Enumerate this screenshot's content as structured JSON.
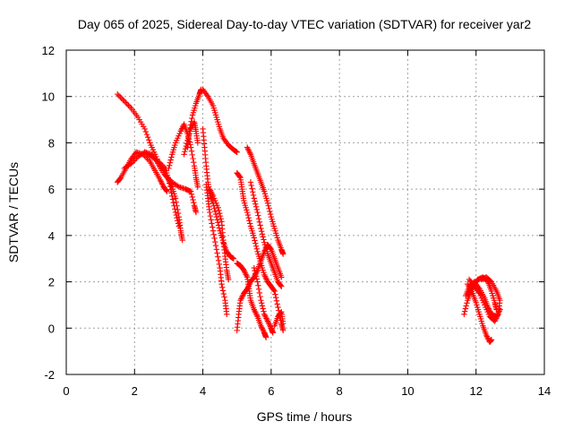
{
  "chart_data": {
    "type": "scatter",
    "title": "Day 065 of 2025, Sidereal Day-to-day VTEC variation (SDTVAR) for receiver yar2",
    "xlabel": "GPS time / hours",
    "ylabel": "SDTVAR / TECUs",
    "xlim": [
      0,
      14
    ],
    "ylim": [
      -2,
      12
    ],
    "xticks": [
      0,
      2,
      4,
      6,
      8,
      10,
      12,
      14
    ],
    "yticks": [
      -2,
      0,
      2,
      4,
      6,
      8,
      10,
      12
    ],
    "grid": true,
    "marker": "plus",
    "color": "#ff0000",
    "series": [
      {
        "points": [
          [
            1.5,
            10.1
          ],
          [
            1.7,
            9.8
          ],
          [
            1.9,
            9.5
          ],
          [
            2.1,
            9.1
          ],
          [
            2.3,
            8.6
          ],
          [
            2.45,
            8.0
          ],
          [
            2.6,
            7.5
          ],
          [
            2.75,
            7.0
          ],
          [
            2.9,
            6.8
          ]
        ]
      },
      {
        "points": [
          [
            1.5,
            6.3
          ],
          [
            1.6,
            6.5
          ],
          [
            1.75,
            6.9
          ],
          [
            1.9,
            7.3
          ],
          [
            2.05,
            7.6
          ],
          [
            2.25,
            7.5
          ],
          [
            2.45,
            7.2
          ],
          [
            2.6,
            6.8
          ],
          [
            2.75,
            6.4
          ],
          [
            2.85,
            6.1
          ],
          [
            2.95,
            5.9
          ]
        ]
      },
      {
        "points": [
          [
            1.7,
            6.9
          ],
          [
            1.9,
            7.1
          ],
          [
            2.1,
            7.4
          ],
          [
            2.3,
            7.6
          ],
          [
            2.5,
            7.5
          ],
          [
            2.65,
            7.2
          ],
          [
            2.8,
            6.8
          ],
          [
            3.0,
            6.4
          ],
          [
            3.1,
            6.1
          ],
          [
            3.2,
            5.6
          ],
          [
            3.3,
            4.8
          ],
          [
            3.35,
            4.2
          ],
          [
            3.4,
            3.8
          ]
        ]
      },
      {
        "points": [
          [
            2.3,
            7.6
          ],
          [
            2.5,
            7.4
          ],
          [
            2.7,
            7.2
          ],
          [
            2.9,
            6.9
          ],
          [
            3.0,
            6.4
          ],
          [
            3.1,
            5.7
          ],
          [
            3.2,
            5.0
          ],
          [
            3.3,
            4.4
          ]
        ]
      },
      {
        "points": [
          [
            3.0,
            6.9
          ],
          [
            3.1,
            7.5
          ],
          [
            3.2,
            8.0
          ],
          [
            3.35,
            8.5
          ],
          [
            3.45,
            8.8
          ],
          [
            3.55,
            8.4
          ],
          [
            3.65,
            7.8
          ],
          [
            3.75,
            7.0
          ],
          [
            3.8,
            6.5
          ],
          [
            3.85,
            6.1
          ]
        ]
      },
      {
        "points": [
          [
            2.9,
            6.6
          ],
          [
            3.1,
            6.3
          ],
          [
            3.3,
            6.1
          ],
          [
            3.5,
            6.0
          ],
          [
            3.65,
            5.9
          ],
          [
            3.75,
            5.3
          ],
          [
            3.8,
            5.0
          ]
        ]
      },
      {
        "points": [
          [
            3.45,
            7.5
          ],
          [
            3.55,
            8.1
          ],
          [
            3.65,
            8.6
          ],
          [
            3.75,
            8.9
          ],
          [
            3.8,
            8.5
          ],
          [
            3.85,
            8.0
          ]
        ]
      },
      {
        "points": [
          [
            3.55,
            7.8
          ],
          [
            3.6,
            8.5
          ],
          [
            3.7,
            9.2
          ],
          [
            3.8,
            9.7
          ],
          [
            3.9,
            10.1
          ],
          [
            3.95,
            10.3
          ]
        ]
      },
      {
        "points": [
          [
            4.0,
            10.3
          ],
          [
            4.15,
            10.0
          ],
          [
            4.3,
            9.6
          ],
          [
            4.4,
            9.1
          ],
          [
            4.5,
            8.6
          ],
          [
            4.6,
            8.2
          ],
          [
            4.75,
            7.9
          ],
          [
            4.9,
            7.7
          ],
          [
            5.0,
            7.6
          ]
        ]
      },
      {
        "points": [
          [
            4.0,
            8.6
          ],
          [
            4.05,
            7.8
          ],
          [
            4.1,
            7.0
          ],
          [
            4.15,
            6.3
          ],
          [
            4.2,
            5.8
          ],
          [
            4.3,
            5.4
          ],
          [
            4.4,
            4.8
          ],
          [
            4.5,
            4.2
          ],
          [
            4.6,
            3.7
          ],
          [
            4.7,
            3.3
          ],
          [
            4.8,
            3.1
          ],
          [
            4.9,
            3.0
          ]
        ]
      },
      {
        "points": [
          [
            4.1,
            6.2
          ],
          [
            4.15,
            5.6
          ],
          [
            4.2,
            5.0
          ],
          [
            4.3,
            4.2
          ],
          [
            4.4,
            3.4
          ],
          [
            4.5,
            2.6
          ],
          [
            4.55,
            1.9
          ],
          [
            4.65,
            1.2
          ],
          [
            4.7,
            0.6
          ]
        ]
      },
      {
        "points": [
          [
            4.2,
            6.0
          ],
          [
            4.3,
            5.7
          ],
          [
            4.45,
            5.2
          ],
          [
            4.55,
            4.6
          ],
          [
            4.6,
            3.8
          ],
          [
            4.65,
            3.1
          ],
          [
            4.7,
            2.5
          ],
          [
            4.75,
            2.1
          ]
        ]
      },
      {
        "points": [
          [
            5.0,
            -0.1
          ],
          [
            5.05,
            0.6
          ],
          [
            5.1,
            1.2
          ],
          [
            5.2,
            1.5
          ],
          [
            5.3,
            1.7
          ],
          [
            5.4,
            2.0
          ],
          [
            5.5,
            2.2
          ],
          [
            5.6,
            2.5
          ],
          [
            5.7,
            2.9
          ],
          [
            5.8,
            3.3
          ],
          [
            5.9,
            3.6
          ],
          [
            6.0,
            3.4
          ],
          [
            6.1,
            3.0
          ],
          [
            6.2,
            2.6
          ],
          [
            6.3,
            2.2
          ]
        ]
      },
      {
        "points": [
          [
            5.0,
            6.7
          ],
          [
            5.1,
            6.5
          ],
          [
            5.15,
            6.0
          ],
          [
            5.2,
            5.5
          ],
          [
            5.3,
            5.0
          ],
          [
            5.4,
            4.4
          ],
          [
            5.5,
            3.9
          ],
          [
            5.6,
            3.3
          ],
          [
            5.7,
            2.8
          ],
          [
            5.8,
            2.3
          ],
          [
            5.9,
            2.0
          ],
          [
            6.0,
            1.8
          ],
          [
            6.1,
            1.6
          ],
          [
            6.2,
            0.9
          ],
          [
            6.3,
            0.2
          ],
          [
            6.35,
            -0.1
          ]
        ]
      },
      {
        "points": [
          [
            5.0,
            2.8
          ],
          [
            5.1,
            2.7
          ],
          [
            5.2,
            2.5
          ],
          [
            5.3,
            2.2
          ],
          [
            5.35,
            1.7
          ],
          [
            5.4,
            1.2
          ],
          [
            5.5,
            0.8
          ],
          [
            5.6,
            0.5
          ],
          [
            5.7,
            0.1
          ],
          [
            5.8,
            -0.2
          ],
          [
            5.85,
            -0.4
          ]
        ]
      },
      {
        "points": [
          [
            5.3,
            7.8
          ],
          [
            5.4,
            7.5
          ],
          [
            5.5,
            7.1
          ],
          [
            5.6,
            6.7
          ],
          [
            5.7,
            6.3
          ],
          [
            5.8,
            5.9
          ],
          [
            5.9,
            5.4
          ],
          [
            6.0,
            4.8
          ],
          [
            6.1,
            4.3
          ],
          [
            6.2,
            3.8
          ],
          [
            6.3,
            3.4
          ],
          [
            6.35,
            3.2
          ]
        ]
      },
      {
        "points": [
          [
            5.4,
            6.3
          ],
          [
            5.5,
            5.6
          ],
          [
            5.6,
            5.0
          ],
          [
            5.7,
            4.3
          ],
          [
            5.8,
            3.7
          ],
          [
            5.9,
            3.2
          ],
          [
            6.0,
            2.8
          ],
          [
            6.1,
            2.4
          ],
          [
            6.2,
            2.0
          ],
          [
            6.3,
            1.8
          ]
        ]
      },
      {
        "points": [
          [
            5.5,
            2.6
          ],
          [
            5.6,
            2.0
          ],
          [
            5.7,
            1.2
          ],
          [
            5.8,
            0.6
          ],
          [
            5.9,
            0.3
          ],
          [
            6.0,
            0.0
          ],
          [
            6.05,
            -0.2
          ]
        ]
      },
      {
        "points": [
          [
            6.1,
            0.1
          ],
          [
            6.2,
            0.5
          ],
          [
            6.3,
            0.7
          ],
          [
            6.35,
            0.2
          ]
        ]
      },
      {
        "points": [
          [
            11.65,
            0.6
          ],
          [
            11.75,
            1.2
          ],
          [
            11.85,
            1.6
          ],
          [
            11.95,
            1.9
          ],
          [
            12.05,
            2.1
          ],
          [
            12.2,
            2.2
          ],
          [
            12.35,
            2.0
          ],
          [
            12.45,
            1.6
          ],
          [
            12.55,
            1.1
          ],
          [
            12.6,
            0.8
          ]
        ]
      },
      {
        "points": [
          [
            11.7,
            1.4
          ],
          [
            11.8,
            1.8
          ],
          [
            11.95,
            2.0
          ],
          [
            12.1,
            1.7
          ],
          [
            12.25,
            1.3
          ],
          [
            12.35,
            0.9
          ],
          [
            12.45,
            0.6
          ],
          [
            12.6,
            0.5
          ],
          [
            12.7,
            0.8
          ]
        ]
      },
      {
        "points": [
          [
            11.75,
            1.9
          ],
          [
            11.9,
            1.5
          ],
          [
            12.0,
            1.1
          ],
          [
            12.1,
            0.6
          ],
          [
            12.2,
            0.1
          ],
          [
            12.3,
            -0.3
          ],
          [
            12.4,
            -0.6
          ],
          [
            12.45,
            -0.5
          ]
        ]
      },
      {
        "points": [
          [
            11.8,
            2.1
          ],
          [
            11.95,
            1.8
          ],
          [
            12.1,
            1.5
          ],
          [
            12.25,
            1.0
          ],
          [
            12.4,
            0.5
          ],
          [
            12.55,
            0.3
          ],
          [
            12.65,
            0.6
          ],
          [
            12.7,
            1.2
          ],
          [
            12.6,
            1.6
          ],
          [
            12.45,
            2.0
          ],
          [
            12.3,
            2.2
          ],
          [
            12.15,
            2.1
          ]
        ]
      }
    ]
  }
}
